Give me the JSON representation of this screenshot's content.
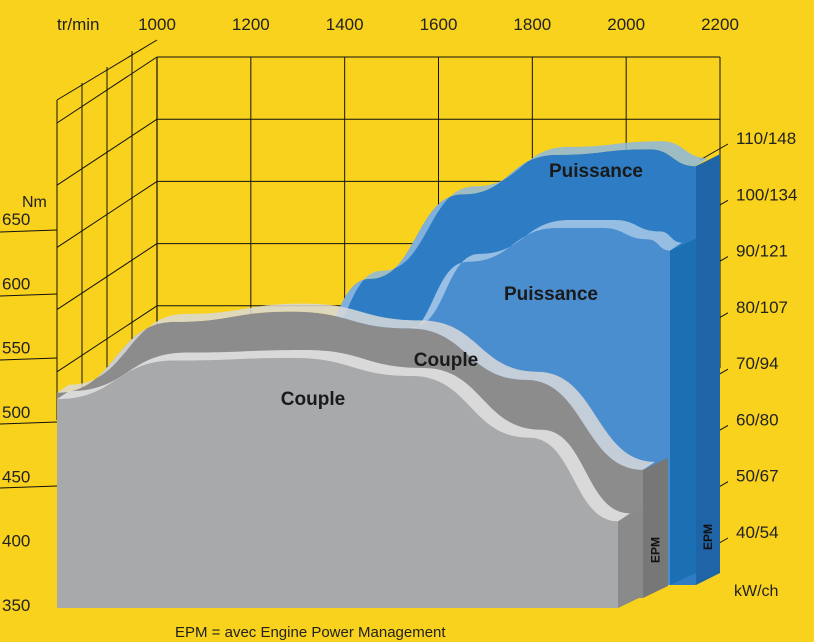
{
  "chart_data": {
    "type": "area",
    "x_unit_label": "tr/min",
    "x_ticks": [
      1000,
      1200,
      1400,
      1600,
      1800,
      2000,
      2200
    ],
    "left_axis": {
      "unit_label": "Nm",
      "ticks": [
        350,
        400,
        450,
        500,
        550,
        600,
        650
      ],
      "range": [
        350,
        700
      ]
    },
    "right_axis": {
      "unit_label": "kW/ch",
      "ticks": [
        "40/54",
        "50/67",
        "60/80",
        "70/94",
        "80/107",
        "90/121",
        "100/134",
        "110/148"
      ],
      "range_kw": [
        40,
        110
      ]
    },
    "series": [
      {
        "name": "Puissance",
        "note": "EPM",
        "unit": "kW",
        "x": [
          1250,
          1400,
          1600,
          1800,
          2000,
          2100
        ],
        "values": [
          71,
          85,
          100,
          107,
          108,
          105
        ]
      },
      {
        "name": "Puissance",
        "unit": "kW",
        "x": [
          1450,
          1600,
          1800,
          1900,
          2000,
          2050
        ],
        "values": [
          75,
          88,
          94,
          94,
          92,
          90
        ]
      },
      {
        "name": "Couple",
        "note": "EPM",
        "unit": "Nm",
        "x": [
          1000,
          1200,
          1400,
          1600,
          1800,
          2000
        ],
        "values": [
          515,
          570,
          578,
          565,
          525,
          455
        ]
      },
      {
        "name": "Couple",
        "unit": "Nm",
        "x": [
          1000,
          1200,
          1400,
          1600,
          1800,
          1950
        ],
        "values": [
          510,
          540,
          542,
          528,
          480,
          415
        ]
      }
    ]
  },
  "footnote": "EPM = avec Engine Power Management"
}
